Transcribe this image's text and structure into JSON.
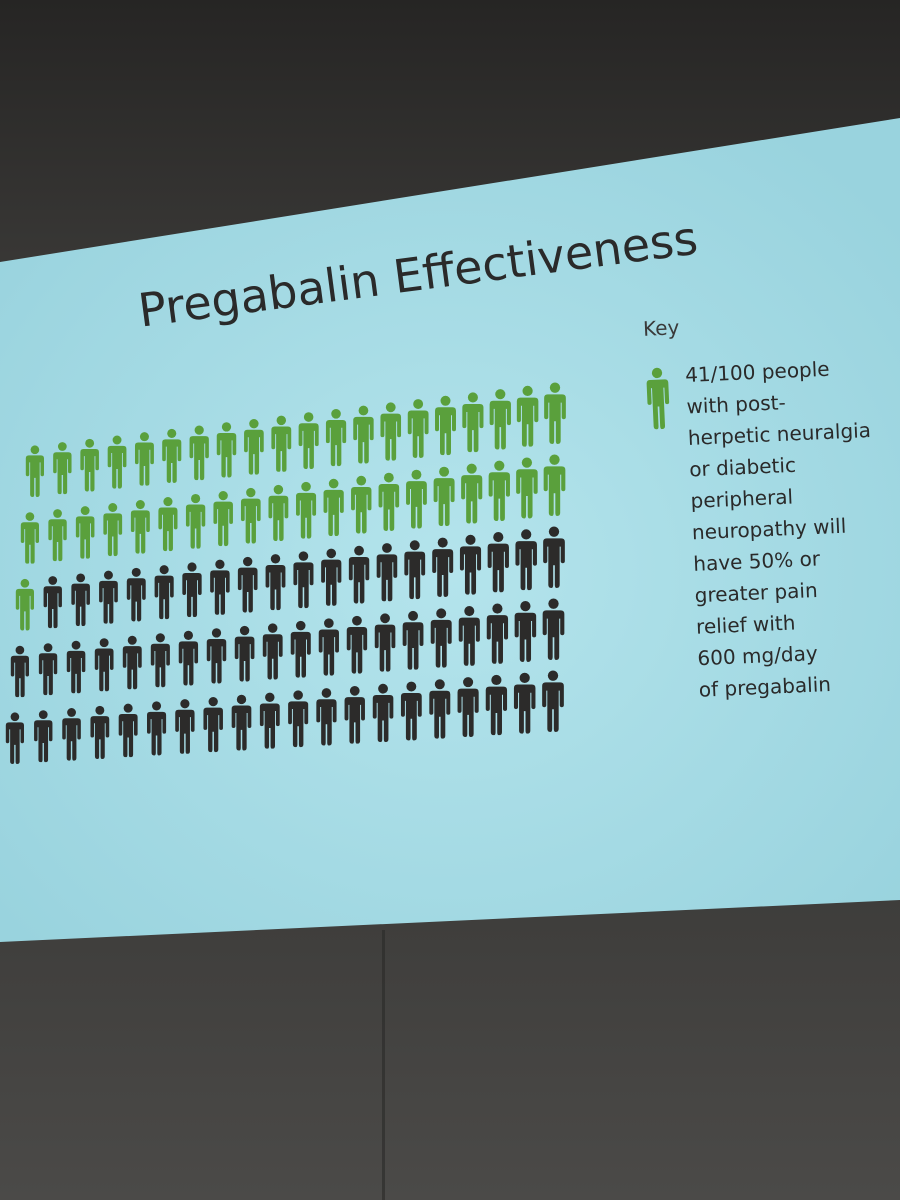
{
  "slide": {
    "title": "Pregabalin Effectiveness",
    "key_heading": "Key",
    "key_lines": [
      "41/100 people",
      "with post-",
      "herpetic neuralgia",
      "or diabetic",
      "peripheral",
      "neuropathy will",
      "have 50% or",
      "greater pain",
      "relief with",
      "600 mg/day",
      "of pregabalin"
    ]
  },
  "pictogram": {
    "total": 100,
    "highlighted": 41,
    "highlight_color": "#5aa03c",
    "base_color": "#2c2b2a",
    "icon": "person-icon"
  },
  "colors": {
    "slide_background": "#a9dde6",
    "title_color": "#2a2a2a"
  }
}
